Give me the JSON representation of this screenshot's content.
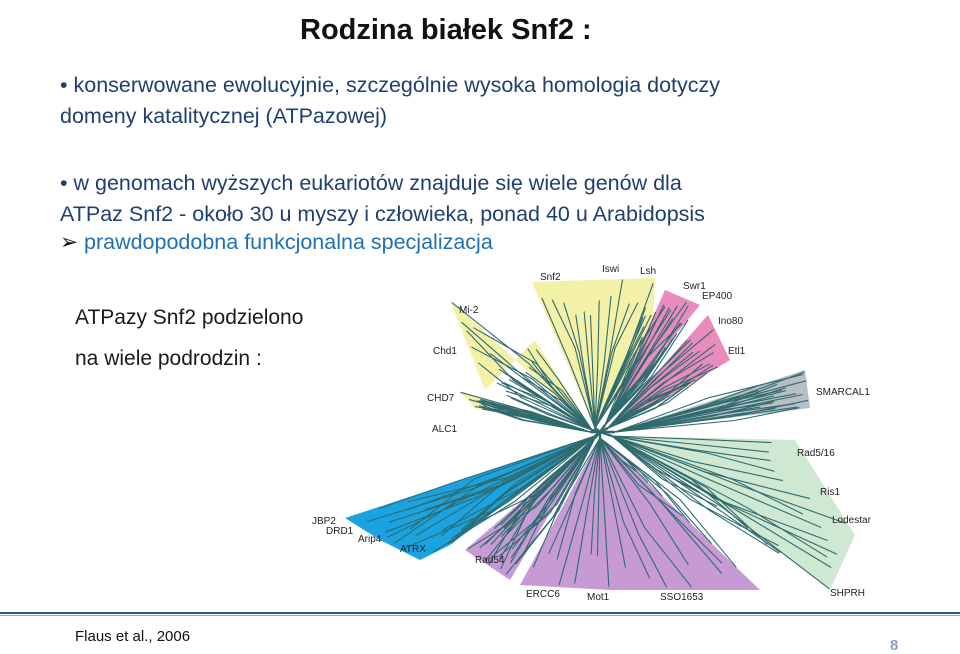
{
  "title": "Rodzina białek Snf2 :",
  "bullets": {
    "b1_line1": "• konserwowane ewolucyjnie, szczególnie wysoka homologia dotyczy",
    "b1_line2": "domeny katalitycznej (ATPazowej)",
    "b2_line1": "• w genomach wyższych eukariotów znajduje się wiele genów dla",
    "b2_line2": "ATPaz Snf2 - około 30 u myszy i człowieka, ponad 40 u Arabidopsis",
    "sub_arrow": "➢",
    "sub": "prawdopodobna funkcjonalna specjalizacja"
  },
  "left_text": {
    "line1": "ATPazy Snf2 podzielono",
    "line2": "na wiele podrodzin :"
  },
  "tree": {
    "labels": [
      "Snf2",
      "Iswi",
      "Lsh",
      "Swr1",
      "EP400",
      "Ino80",
      "Etl1",
      "SMARCAL1",
      "Rad5/16",
      "Ris1",
      "Lodestar",
      "SHPRH",
      "SSO1653",
      "Mot1",
      "ERCC6",
      "Rad54",
      "ATRX",
      "Arip4",
      "DRD1",
      "JBP2",
      "ALC1",
      "CHD7",
      "Chd1",
      "Mi-2"
    ],
    "colors": {
      "yellow": "#f3f0a8",
      "pink": "#e98bbd",
      "gray": "#b7bec6",
      "green": "#cfe8d2",
      "purple": "#c79ad6",
      "blue": "#1aa3e0",
      "branch": "#2f6b6e"
    }
  },
  "footer": {
    "citation": "Flaus et al., 2006",
    "page": "8"
  }
}
